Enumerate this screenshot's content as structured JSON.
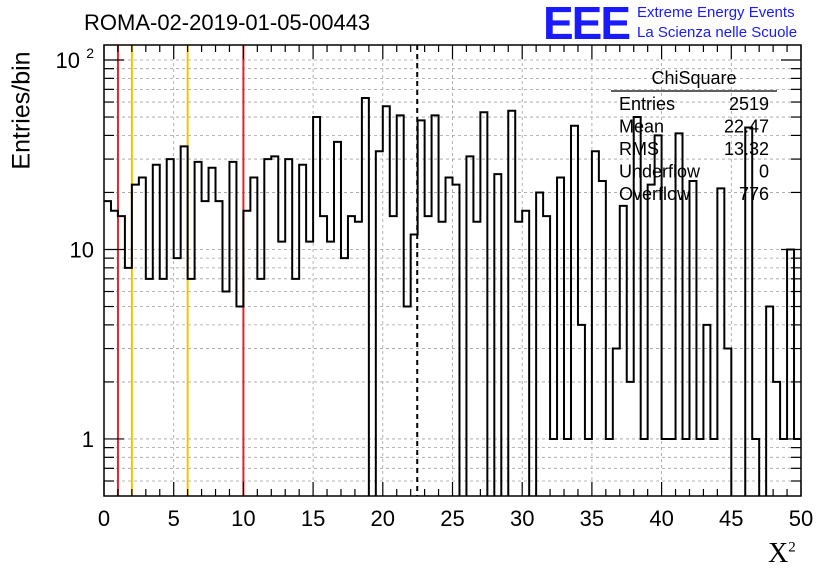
{
  "header": {
    "title": "ROMA-02-2019-01-05-00443",
    "logo_text": "EEE",
    "logo_line1": "Extreme Energy Events",
    "logo_line2": "La Scienza nelle Scuole"
  },
  "stats_box": {
    "name": "ChiSquare",
    "rows": [
      {
        "label": "Entries",
        "value": "2519"
      },
      {
        "label": "Mean",
        "value": "22.47"
      },
      {
        "label": "RMS",
        "value": "13.32"
      },
      {
        "label": "Underflow",
        "value": "0"
      },
      {
        "label": "Overflow",
        "value": "776"
      }
    ]
  },
  "colors": {
    "histogram": "#000000",
    "red_line": "#e8202a",
    "yellow_line": "#f5c400",
    "logo": "#1a1aff",
    "grid": "#a0a0a0"
  },
  "chart_data": {
    "type": "histogram",
    "xlabel": "X",
    "xlabel_sup": "2",
    "ylabel": "Entries/bin",
    "xlim": [
      0,
      50
    ],
    "ylim": [
      0.5,
      120
    ],
    "yscale": "log",
    "x_ticks": [
      "0",
      "5",
      "10",
      "15",
      "20",
      "25",
      "30",
      "35",
      "40",
      "45",
      "50"
    ],
    "y_ticks": [
      {
        "value": 1,
        "label": "1"
      },
      {
        "value": 10,
        "label": "10"
      },
      {
        "value": 100,
        "label": "10",
        "sup": "2"
      }
    ],
    "grid": true,
    "bin_width": 0.5,
    "values": [
      18,
      16,
      15,
      8,
      22,
      24,
      7,
      28,
      7,
      30,
      9,
      35,
      7,
      29,
      18,
      27,
      18,
      6,
      29,
      5,
      16,
      24,
      7,
      30,
      31,
      11,
      30,
      7,
      28,
      11,
      50,
      15,
      11,
      37,
      9,
      15,
      14,
      63,
      0,
      33,
      57,
      15,
      51,
      5,
      12,
      48,
      15,
      51,
      14,
      24,
      22,
      0,
      31,
      14,
      53,
      0,
      25,
      0,
      54,
      14,
      16,
      0,
      20,
      15,
      1,
      24,
      1,
      45,
      4,
      1,
      33,
      23,
      1,
      3,
      17,
      2,
      50,
      1,
      22,
      40,
      1,
      1,
      41,
      1,
      23,
      1,
      4,
      1,
      21,
      3,
      0,
      0,
      44,
      1,
      0,
      5,
      2,
      1,
      10,
      1
    ],
    "vertical_lines": [
      {
        "x": 1,
        "color": "red",
        "style": "solid"
      },
      {
        "x": 2,
        "color": "yellow",
        "style": "solid"
      },
      {
        "x": 6,
        "color": "yellow",
        "style": "solid"
      },
      {
        "x": 10,
        "color": "red",
        "style": "solid"
      },
      {
        "x": 22.47,
        "color": "black",
        "style": "dashed"
      }
    ]
  }
}
